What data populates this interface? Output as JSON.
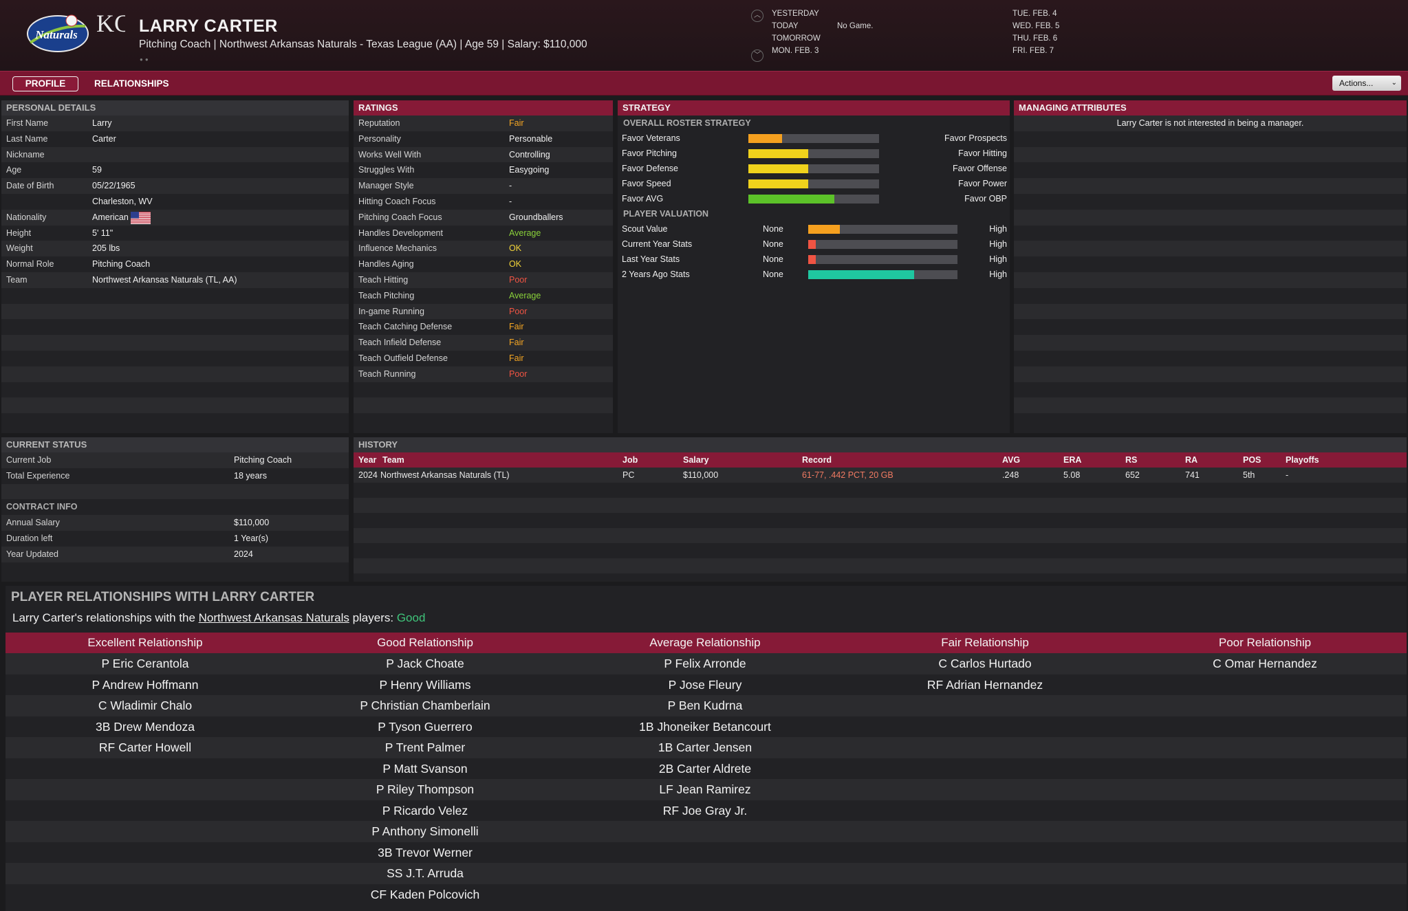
{
  "header": {
    "name": "LARRY CARTER",
    "subtitle": "Pitching Coach | Northwest Arkansas Naturals - Texas League (AA)  |  Age 59  |  Salary: $110,000",
    "team_logo_text": "Naturals",
    "org_logo_text": "KC",
    "schedule": [
      {
        "label": "YESTERDAY",
        "value": ""
      },
      {
        "label": "TODAY",
        "value": "No Game."
      },
      {
        "label": "TOMORROW",
        "value": ""
      },
      {
        "label": "MON. FEB. 3",
        "value": ""
      }
    ],
    "dates": [
      "TUE. FEB. 4",
      "WED. FEB. 5",
      "THU. FEB. 6",
      "FRI. FEB. 7"
    ]
  },
  "tabs": {
    "profile": "PROFILE",
    "relationships": "RELATIONSHIPS",
    "actions": "Actions..."
  },
  "personal": {
    "title": "PERSONAL DETAILS",
    "rows": [
      {
        "label": "First Name",
        "value": "Larry"
      },
      {
        "label": "Last Name",
        "value": "Carter"
      },
      {
        "label": "Nickname",
        "value": ""
      },
      {
        "label": "Age",
        "value": "59"
      },
      {
        "label": "Date of Birth",
        "value": "05/22/1965"
      },
      {
        "label": "",
        "value": "Charleston, WV"
      },
      {
        "label": "Nationality",
        "value": "American"
      },
      {
        "label": "Height",
        "value": "5' 11\""
      },
      {
        "label": "Weight",
        "value": "205 lbs"
      },
      {
        "label": "Normal Role",
        "value": "Pitching Coach"
      },
      {
        "label": "Team",
        "value": "Northwest Arkansas Naturals (TL, AA)"
      }
    ]
  },
  "ratings": {
    "title": "RATINGS",
    "rows": [
      {
        "label": "Reputation",
        "value": "Fair",
        "cls": "fair"
      },
      {
        "label": "Personality",
        "value": "Personable",
        "cls": ""
      },
      {
        "label": "Works Well With",
        "value": "Controlling",
        "cls": ""
      },
      {
        "label": "Struggles With",
        "value": "Easygoing",
        "cls": ""
      },
      {
        "label": "Manager Style",
        "value": "-",
        "cls": ""
      },
      {
        "label": "Hitting Coach Focus",
        "value": "-",
        "cls": ""
      },
      {
        "label": "Pitching Coach Focus",
        "value": "Groundballers",
        "cls": ""
      },
      {
        "label": "Handles Development",
        "value": "Average",
        "cls": "good"
      },
      {
        "label": "Influence Mechanics",
        "value": "OK",
        "cls": "ok"
      },
      {
        "label": "Handles Aging",
        "value": "OK",
        "cls": "ok"
      },
      {
        "label": "Teach Hitting",
        "value": "Poor",
        "cls": "poor"
      },
      {
        "label": "Teach Pitching",
        "value": "Average",
        "cls": "good"
      },
      {
        "label": "In-game Running",
        "value": "Poor",
        "cls": "poor"
      },
      {
        "label": "Teach Catching Defense",
        "value": "Fair",
        "cls": "fair"
      },
      {
        "label": "Teach Infield Defense",
        "value": "Fair",
        "cls": "fair"
      },
      {
        "label": "Teach Outfield Defense",
        "value": "Fair",
        "cls": "fair"
      },
      {
        "label": "Teach Running",
        "value": "Poor",
        "cls": "poor"
      }
    ]
  },
  "strategy": {
    "title": "STRATEGY",
    "roster_title": "OVERALL ROSTER STRATEGY",
    "roster": [
      {
        "left": "Favor Veterans",
        "right": "Favor Prospects",
        "level": 0.26,
        "color": "#f5a01f"
      },
      {
        "left": "Favor Pitching",
        "right": "Favor Hitting",
        "level": 0.46,
        "color": "#f0d21c"
      },
      {
        "left": "Favor Defense",
        "right": "Favor Offense",
        "level": 0.46,
        "color": "#f0d21c"
      },
      {
        "left": "Favor Speed",
        "right": "Favor Power",
        "level": 0.46,
        "color": "#f0d21c"
      },
      {
        "left": "Favor AVG",
        "right": "Favor OBP",
        "level": 0.66,
        "color": "#5cc229"
      }
    ],
    "valuation_title": "PLAYER VALUATION",
    "valuation": [
      {
        "label": "Scout Value",
        "low": "None",
        "high": "High",
        "level": 0.21,
        "color": "#f5a01f"
      },
      {
        "label": "Current Year Stats",
        "low": "None",
        "high": "High",
        "level": 0.05,
        "color": "#f05443"
      },
      {
        "label": "Last Year Stats",
        "low": "None",
        "high": "High",
        "level": 0.05,
        "color": "#f05443"
      },
      {
        "label": "2 Years Ago Stats",
        "low": "None",
        "high": "High",
        "level": 0.71,
        "color": "#1fc7a0"
      }
    ]
  },
  "managing": {
    "title": "MANAGING ATTRIBUTES",
    "text": "Larry Carter is not interested in being a manager."
  },
  "current": {
    "title": "CURRENT STATUS",
    "rows": [
      {
        "label": "Current Job",
        "value": "Pitching Coach"
      },
      {
        "label": "Total Experience",
        "value": "18 years"
      }
    ],
    "contract_title": "CONTRACT INFO",
    "contract": [
      {
        "label": "Annual Salary",
        "value": "$110,000"
      },
      {
        "label": "Duration left",
        "value": "1 Year(s)"
      },
      {
        "label": "Year Updated",
        "value": "2024"
      }
    ]
  },
  "history": {
    "title": "HISTORY",
    "columns": [
      "Year",
      "Team",
      "Job",
      "Salary",
      "Record",
      "AVG",
      "ERA",
      "RS",
      "RA",
      "POS",
      "Playoffs"
    ],
    "rows": [
      {
        "year": "2024",
        "team": "Northwest Arkansas Naturals (TL)",
        "job": "PC",
        "salary": "$110,000",
        "record": "61-77, .442 PCT, 20 GB",
        "avg": ".248",
        "era": "5.08",
        "rs": "652",
        "ra": "741",
        "pos": "5th",
        "playoffs": "-"
      }
    ]
  },
  "relationships": {
    "title": "PLAYER RELATIONSHIPS WITH LARRY CARTER",
    "summary_pre": "Larry Carter's relationships with the ",
    "summary_team": "Northwest Arkansas Naturals",
    "summary_mid": " players: ",
    "summary_val": "Good",
    "columns": [
      {
        "header": "Excellent Relationship",
        "players": [
          "P Eric Cerantola",
          "P Andrew Hoffmann",
          "C Wladimir Chalo",
          "3B Drew Mendoza",
          "RF Carter Howell"
        ]
      },
      {
        "header": "Good Relationship",
        "players": [
          "P Jack Choate",
          "P Henry Williams",
          "P Christian Chamberlain",
          "P Tyson Guerrero",
          "P Trent Palmer",
          "P Matt Svanson",
          "P Riley Thompson",
          "P Ricardo Velez",
          "P Anthony Simonelli",
          "3B Trevor Werner",
          "SS J.T. Arruda",
          "CF Kaden Polcovich"
        ]
      },
      {
        "header": "Average Relationship",
        "players": [
          "P Felix Arronde",
          "P Jose Fleury",
          "P Ben Kudrna",
          "1B Jhoneiker Betancourt",
          "1B Carter Jensen",
          "2B Carter Aldrete",
          "LF Jean Ramirez",
          "RF Joe Gray Jr."
        ]
      },
      {
        "header": "Fair Relationship",
        "players": [
          "C Carlos Hurtado",
          "RF Adrian Hernandez"
        ]
      },
      {
        "header": "Poor Relationship",
        "players": [
          "C Omar Hernandez"
        ]
      }
    ]
  }
}
